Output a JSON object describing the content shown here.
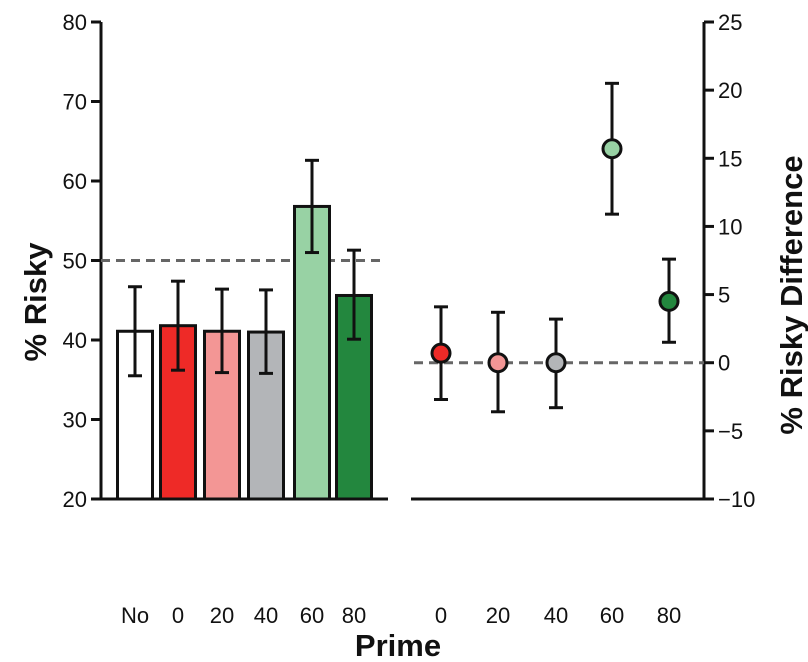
{
  "chart_data": {
    "type": "bar",
    "xlabel": "Prime",
    "left_panel": {
      "type": "bar",
      "ylabel": "% Risky",
      "ylim": [
        20,
        80
      ],
      "yticks": [
        20,
        30,
        40,
        50,
        60,
        70,
        80
      ],
      "reference_line": 50,
      "categories": [
        "No",
        "0",
        "20",
        "40",
        "60",
        "80"
      ],
      "values": [
        41.1,
        41.8,
        41.1,
        41.0,
        56.8,
        45.6
      ],
      "error_low": [
        35.5,
        36.2,
        35.9,
        35.8,
        51.0,
        40.1
      ],
      "error_high": [
        46.7,
        47.4,
        46.4,
        46.3,
        62.6,
        51.3
      ],
      "colors": [
        "#ffffff",
        "#ee2a27",
        "#f39695",
        "#b3b5b8",
        "#98d2a4",
        "#23873e"
      ]
    },
    "right_panel": {
      "type": "scatter",
      "ylabel": "% Risky Difference",
      "ylim": [
        -10,
        25
      ],
      "yticks": [
        -10,
        -5,
        0,
        5,
        10,
        15,
        20,
        25
      ],
      "ytick_labels": [
        "−10",
        "−5",
        "0",
        "5",
        "10",
        "15",
        "20",
        "25"
      ],
      "reference_line": 0,
      "categories": [
        "0",
        "20",
        "40",
        "60",
        "80"
      ],
      "values": [
        0.7,
        0.0,
        0.0,
        15.7,
        4.5
      ],
      "error_low": [
        -2.7,
        -3.6,
        -3.3,
        10.9,
        1.5
      ],
      "error_high": [
        4.1,
        3.7,
        3.2,
        20.5,
        7.6
      ],
      "colors": [
        "#ee2a27",
        "#f39695",
        "#b3b5b8",
        "#98d2a4",
        "#23873e"
      ]
    }
  }
}
